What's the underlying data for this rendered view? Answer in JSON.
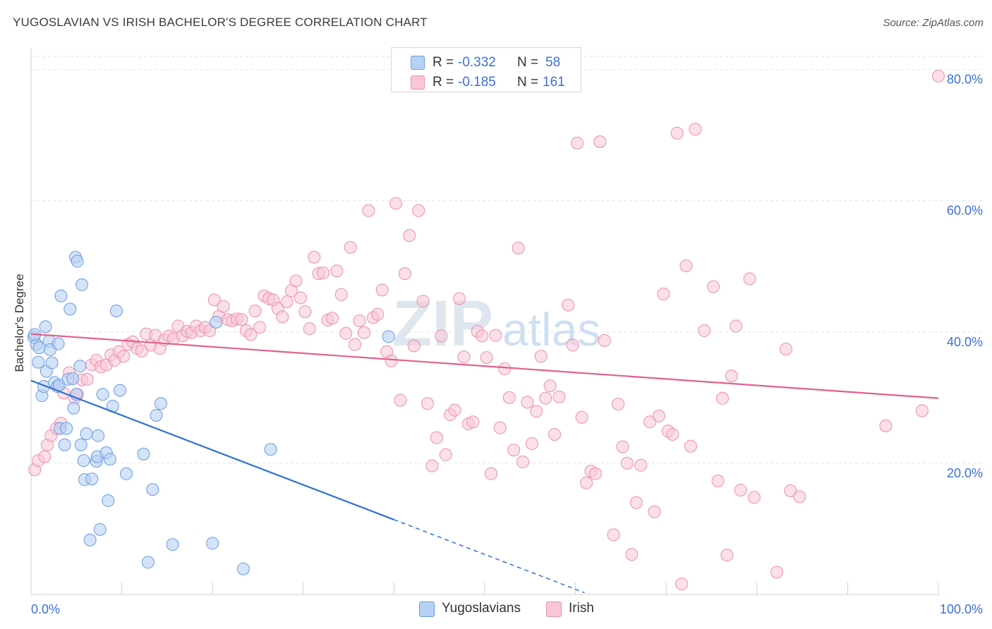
{
  "title": "YUGOSLAVIAN VS IRISH BACHELOR'S DEGREE CORRELATION CHART",
  "source": "Source: ZipAtlas.com",
  "watermark": {
    "zip": "ZIP",
    "atlas": "atlas"
  },
  "colors": {
    "blue_fill": "#b7d1f3",
    "blue_stroke": "#6a9be0",
    "blue_line": "#2f72d0",
    "pink_fill": "#f8c6d5",
    "pink_stroke": "#eb8fae",
    "pink_line": "#e0608e",
    "accent_text": "#3d6fd6",
    "grid": "#e2e2e2"
  },
  "legend_top": [
    {
      "r_label": "R =",
      "r_value": "-0.332",
      "n_label": "N =",
      "n_value": "58"
    },
    {
      "r_label": "R =",
      "r_value": "-0.185",
      "n_label": "N =",
      "n_value": "161"
    }
  ],
  "chart_data": {
    "type": "scatter",
    "title": "YUGOSLAVIAN VS IRISH BACHELOR'S DEGREE CORRELATION CHART",
    "ylabel": "Bachelor's Degree",
    "xlabel": "",
    "xlim": [
      0,
      100
    ],
    "ylim": [
      0,
      82
    ],
    "x_tick_labels": [
      {
        "value": 0,
        "label": "0.0%"
      },
      {
        "value": 100,
        "label": "100.0%"
      }
    ],
    "y_tick_labels": [
      {
        "value": 20,
        "label": "20.0%"
      },
      {
        "value": 40,
        "label": "40.0%"
      },
      {
        "value": 60,
        "label": "60.0%"
      },
      {
        "value": 80,
        "label": "80.0%"
      }
    ],
    "grid": true,
    "legend_position": "bottom",
    "series": [
      {
        "name": "Yugoslavians",
        "trend": {
          "x_start": 0,
          "y_start": 32.6,
          "x_solid_end": 40,
          "x_dashed_end": 61,
          "slope": -0.53
        },
        "points": [
          [
            0.3,
            39.2
          ],
          [
            0.6,
            38.1
          ],
          [
            0.8,
            35.4
          ],
          [
            0.9,
            37.6
          ],
          [
            1.2,
            30.3
          ],
          [
            1.4,
            31.7
          ],
          [
            1.6,
            40.8
          ],
          [
            1.7,
            34.0
          ],
          [
            2.0,
            38.6
          ],
          [
            2.1,
            37.3
          ],
          [
            2.3,
            35.3
          ],
          [
            2.6,
            32.3
          ],
          [
            2.9,
            31.7
          ],
          [
            3.0,
            38.2
          ],
          [
            3.1,
            31.9
          ],
          [
            3.2,
            25.3
          ],
          [
            3.3,
            45.5
          ],
          [
            3.7,
            22.8
          ],
          [
            3.9,
            25.3
          ],
          [
            4.1,
            32.8
          ],
          [
            4.3,
            43.5
          ],
          [
            4.6,
            32.9
          ],
          [
            4.7,
            28.4
          ],
          [
            4.9,
            51.4
          ],
          [
            5.0,
            30.5
          ],
          [
            5.1,
            50.8
          ],
          [
            5.4,
            34.8
          ],
          [
            5.5,
            22.8
          ],
          [
            5.6,
            47.2
          ],
          [
            5.8,
            20.4
          ],
          [
            5.9,
            17.5
          ],
          [
            6.1,
            24.5
          ],
          [
            6.5,
            8.3
          ],
          [
            6.7,
            17.6
          ],
          [
            7.2,
            20.3
          ],
          [
            7.3,
            21.0
          ],
          [
            7.4,
            24.2
          ],
          [
            7.6,
            9.9
          ],
          [
            7.9,
            30.5
          ],
          [
            8.3,
            21.6
          ],
          [
            8.5,
            14.3
          ],
          [
            8.7,
            20.6
          ],
          [
            9.0,
            28.7
          ],
          [
            9.4,
            43.2
          ],
          [
            9.8,
            31.1
          ],
          [
            10.5,
            18.4
          ],
          [
            12.4,
            21.4
          ],
          [
            12.9,
            4.9
          ],
          [
            13.4,
            16.0
          ],
          [
            13.8,
            27.3
          ],
          [
            14.3,
            29.1
          ],
          [
            15.6,
            7.6
          ],
          [
            20.0,
            7.8
          ],
          [
            20.4,
            41.5
          ],
          [
            23.4,
            3.9
          ],
          [
            26.4,
            22.1
          ],
          [
            39.4,
            39.3
          ],
          [
            0.4,
            39.6
          ]
        ]
      },
      {
        "name": "Irish",
        "trend": {
          "x_start": 0,
          "y_start": 39.7,
          "x_end": 100,
          "y_end": 29.9
        },
        "points": [
          [
            0.4,
            19.0
          ],
          [
            0.8,
            20.4
          ],
          [
            1.5,
            21.0
          ],
          [
            1.8,
            22.8
          ],
          [
            2.2,
            24.2
          ],
          [
            2.8,
            25.3
          ],
          [
            3.3,
            26.1
          ],
          [
            3.6,
            30.7
          ],
          [
            4.2,
            33.8
          ],
          [
            4.8,
            29.9
          ],
          [
            5.1,
            30.5
          ],
          [
            5.6,
            32.7
          ],
          [
            6.2,
            32.8
          ],
          [
            6.7,
            35.0
          ],
          [
            7.2,
            35.7
          ],
          [
            7.7,
            34.7
          ],
          [
            8.3,
            35.0
          ],
          [
            8.8,
            36.5
          ],
          [
            9.2,
            35.7
          ],
          [
            9.7,
            37.0
          ],
          [
            10.2,
            36.3
          ],
          [
            10.7,
            38.1
          ],
          [
            11.2,
            38.5
          ],
          [
            11.7,
            37.5
          ],
          [
            12.2,
            37.1
          ],
          [
            12.7,
            39.7
          ],
          [
            13.2,
            38.0
          ],
          [
            13.7,
            39.5
          ],
          [
            14.2,
            37.5
          ],
          [
            14.7,
            38.8
          ],
          [
            15.2,
            39.4
          ],
          [
            15.7,
            39.0
          ],
          [
            16.2,
            40.9
          ],
          [
            16.7,
            39.4
          ],
          [
            17.2,
            40.1
          ],
          [
            17.7,
            39.9
          ],
          [
            18.2,
            40.9
          ],
          [
            18.7,
            40.2
          ],
          [
            19.2,
            40.7
          ],
          [
            19.7,
            40.2
          ],
          [
            20.2,
            44.9
          ],
          [
            20.7,
            42.4
          ],
          [
            21.2,
            43.9
          ],
          [
            21.7,
            41.9
          ],
          [
            22.2,
            41.7
          ],
          [
            22.7,
            42.0
          ],
          [
            23.2,
            41.9
          ],
          [
            23.7,
            40.2
          ],
          [
            24.2,
            39.6
          ],
          [
            24.7,
            43.2
          ],
          [
            25.2,
            40.7
          ],
          [
            25.7,
            45.5
          ],
          [
            26.2,
            45.1
          ],
          [
            26.7,
            44.9
          ],
          [
            27.2,
            43.6
          ],
          [
            27.7,
            42.3
          ],
          [
            28.2,
            44.6
          ],
          [
            28.7,
            46.3
          ],
          [
            29.2,
            47.8
          ],
          [
            29.7,
            45.2
          ],
          [
            30.2,
            43.1
          ],
          [
            30.7,
            40.5
          ],
          [
            31.2,
            51.4
          ],
          [
            31.7,
            48.9
          ],
          [
            32.2,
            49.0
          ],
          [
            32.7,
            41.8
          ],
          [
            33.2,
            42.1
          ],
          [
            33.7,
            49.3
          ],
          [
            34.2,
            45.7
          ],
          [
            34.7,
            39.8
          ],
          [
            35.2,
            52.9
          ],
          [
            35.7,
            38.1
          ],
          [
            36.2,
            41.7
          ],
          [
            36.7,
            39.9
          ],
          [
            37.2,
            58.5
          ],
          [
            37.7,
            42.2
          ],
          [
            38.2,
            42.7
          ],
          [
            38.7,
            46.4
          ],
          [
            39.2,
            37.0
          ],
          [
            39.7,
            35.6
          ],
          [
            40.2,
            59.6
          ],
          [
            40.7,
            29.6
          ],
          [
            41.2,
            48.9
          ],
          [
            41.7,
            54.7
          ],
          [
            42.2,
            37.9
          ],
          [
            42.7,
            58.5
          ],
          [
            43.2,
            44.7
          ],
          [
            43.7,
            29.1
          ],
          [
            44.2,
            19.6
          ],
          [
            44.7,
            23.9
          ],
          [
            45.2,
            39.4
          ],
          [
            45.7,
            21.3
          ],
          [
            46.2,
            27.4
          ],
          [
            46.7,
            28.1
          ],
          [
            47.2,
            45.1
          ],
          [
            47.7,
            36.2
          ],
          [
            48.2,
            26.0
          ],
          [
            48.7,
            26.3
          ],
          [
            49.2,
            40.1
          ],
          [
            49.7,
            39.4
          ],
          [
            50.2,
            36.1
          ],
          [
            50.7,
            18.4
          ],
          [
            51.2,
            39.5
          ],
          [
            51.7,
            25.4
          ],
          [
            52.2,
            34.4
          ],
          [
            52.7,
            30.0
          ],
          [
            53.2,
            22.0
          ],
          [
            53.7,
            52.8
          ],
          [
            54.2,
            20.2
          ],
          [
            54.7,
            29.3
          ],
          [
            55.2,
            23.0
          ],
          [
            55.7,
            27.9
          ],
          [
            56.2,
            36.3
          ],
          [
            56.7,
            29.9
          ],
          [
            57.2,
            31.8
          ],
          [
            57.7,
            24.4
          ],
          [
            58.2,
            30.1
          ],
          [
            59.2,
            44.1
          ],
          [
            59.7,
            38.0
          ],
          [
            60.2,
            68.8
          ],
          [
            60.7,
            27.0
          ],
          [
            61.2,
            17.0
          ],
          [
            61.7,
            18.8
          ],
          [
            62.2,
            18.4
          ],
          [
            62.7,
            69.0
          ],
          [
            63.2,
            38.7
          ],
          [
            64.2,
            9.1
          ],
          [
            64.7,
            29.0
          ],
          [
            65.2,
            22.5
          ],
          [
            65.7,
            20.0
          ],
          [
            66.2,
            6.1
          ],
          [
            66.7,
            14.0
          ],
          [
            67.2,
            19.7
          ],
          [
            68.2,
            26.3
          ],
          [
            68.7,
            12.6
          ],
          [
            69.2,
            27.2
          ],
          [
            69.7,
            45.8
          ],
          [
            70.2,
            24.9
          ],
          [
            70.7,
            24.4
          ],
          [
            71.2,
            70.3
          ],
          [
            71.7,
            1.6
          ],
          [
            72.2,
            50.1
          ],
          [
            72.7,
            22.6
          ],
          [
            73.2,
            70.9
          ],
          [
            74.2,
            40.2
          ],
          [
            75.2,
            46.9
          ],
          [
            75.7,
            17.3
          ],
          [
            76.2,
            29.9
          ],
          [
            76.7,
            6.0
          ],
          [
            77.2,
            33.3
          ],
          [
            77.7,
            40.9
          ],
          [
            78.2,
            15.9
          ],
          [
            79.2,
            48.1
          ],
          [
            79.7,
            14.8
          ],
          [
            82.2,
            3.4
          ],
          [
            83.2,
            37.4
          ],
          [
            83.7,
            15.8
          ],
          [
            84.7,
            14.9
          ],
          [
            94.2,
            25.7
          ],
          [
            98.2,
            28.0
          ],
          [
            100.0,
            79.0
          ]
        ]
      }
    ]
  },
  "legend_bottom": [
    {
      "label": "Yugoslavians"
    },
    {
      "label": "Irish"
    }
  ]
}
